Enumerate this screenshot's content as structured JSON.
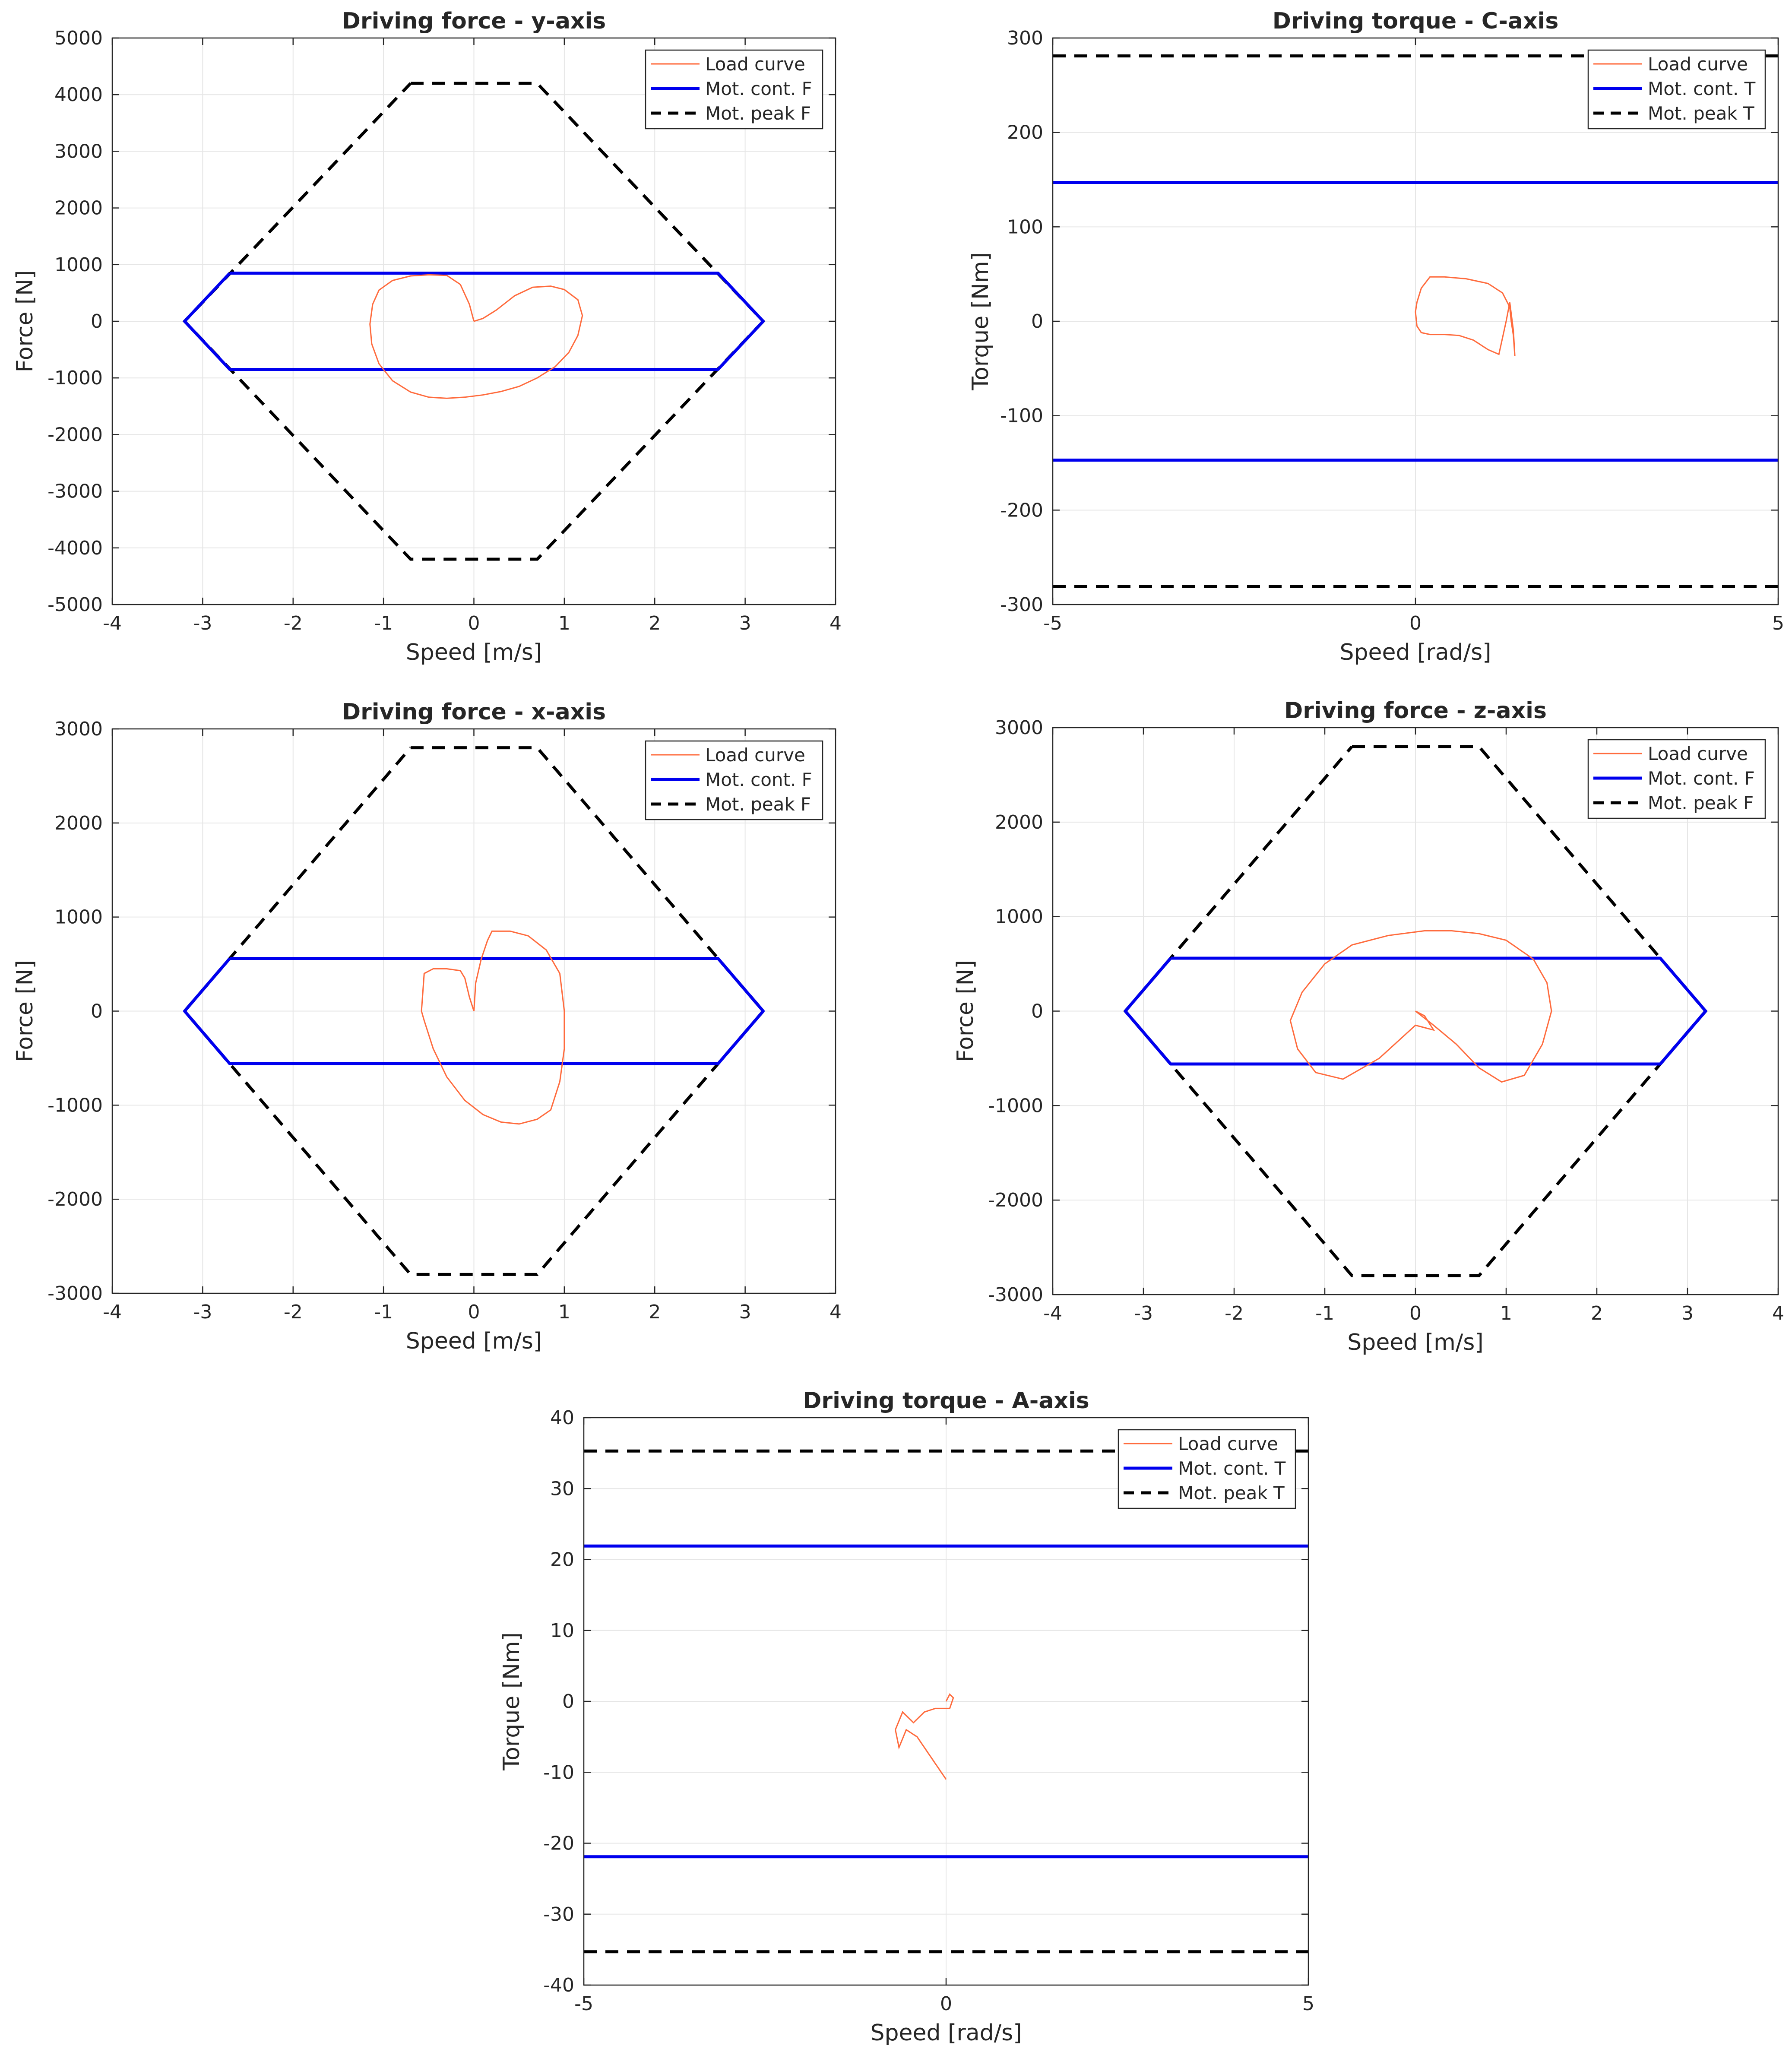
{
  "figure": {
    "colors": {
      "load_curve": "#ff6b3d",
      "mot_cont": "#0000ee",
      "mot_peak": "#000000",
      "grid": "#e6e6e6",
      "axis": "#262626",
      "legend_border": "#262626"
    }
  },
  "chart_data": [
    {
      "id": "y-axis",
      "type": "line",
      "title": "Driving force - y-axis",
      "xlabel": "Speed [m/s]",
      "ylabel": "Force [N]",
      "xlim": [
        -4,
        4
      ],
      "ylim": [
        -5000,
        5000
      ],
      "xticks": [
        -4,
        -3,
        -2,
        -1,
        0,
        1,
        2,
        3,
        4
      ],
      "yticks": [
        -5000,
        -4000,
        -3000,
        -2000,
        -1000,
        0,
        1000,
        2000,
        3000,
        4000,
        5000
      ],
      "grid": true,
      "legend_position": "top-right",
      "series": [
        {
          "name": "Load curve",
          "style": "thin-solid",
          "x": [
            0,
            0.1,
            0.25,
            0.45,
            0.65,
            0.85,
            1.0,
            1.15,
            1.2,
            1.15,
            1.05,
            0.9,
            0.7,
            0.5,
            0.3,
            0.1,
            -0.1,
            -0.3,
            -0.5,
            -0.7,
            -0.9,
            -1.05,
            -1.13,
            -1.15,
            -1.12,
            -1.05,
            -0.9,
            -0.7,
            -0.5,
            -0.3,
            -0.15,
            -0.05,
            0
          ],
          "y": [
            0,
            50,
            200,
            450,
            600,
            620,
            560,
            380,
            100,
            -250,
            -550,
            -800,
            -1000,
            -1150,
            -1240,
            -1300,
            -1340,
            -1360,
            -1340,
            -1250,
            -1050,
            -750,
            -400,
            -50,
            300,
            550,
            720,
            800,
            820,
            810,
            650,
            300,
            0
          ]
        },
        {
          "name": "Mot. cont. F",
          "style": "solid",
          "x": [
            -2.7,
            2.7,
            3.2,
            2.7,
            -2.7,
            -3.2,
            -2.7
          ],
          "y": [
            850,
            850,
            0,
            -850,
            -850,
            0,
            850
          ]
        },
        {
          "name": "Mot. peak F",
          "style": "dashed",
          "x": [
            -0.7,
            0.7,
            3.2,
            0.7,
            -0.7,
            -3.2,
            -0.7
          ],
          "y": [
            4200,
            4200,
            0,
            -4200,
            -4200,
            0,
            4200
          ]
        }
      ]
    },
    {
      "id": "c-axis",
      "type": "line",
      "title": "Driving torque - C-axis",
      "xlabel": "Speed [rad/s]",
      "ylabel": "Torque [Nm]",
      "xlim": [
        -5,
        5
      ],
      "ylim": [
        -300,
        300
      ],
      "xticks": [
        -5,
        0,
        5
      ],
      "yticks": [
        -300,
        -200,
        -100,
        0,
        100,
        200,
        300
      ],
      "grid": true,
      "legend_position": "top-right",
      "series": [
        {
          "name": "Load curve",
          "style": "thin-solid",
          "x": [
            0,
            0.02,
            0.08,
            0.2,
            0.4,
            0.7,
            1.0,
            1.2,
            1.3,
            1.32,
            1.35,
            1.37,
            1.35,
            1.3,
            1.25,
            1.15,
            1.0,
            0.8,
            0.6,
            0.4,
            0.2,
            0.08,
            0.02,
            0
          ],
          "y": [
            10,
            20,
            35,
            47,
            47,
            45,
            40,
            30,
            15,
            0,
            -15,
            -37,
            -10,
            20,
            0,
            -35,
            -30,
            -20,
            -15,
            -14,
            -14,
            -12,
            -5,
            10
          ]
        },
        {
          "name": "Mot. cont. T",
          "style": "solid",
          "x": [
            -5,
            5
          ],
          "y": [
            147,
            147
          ],
          "x2": [
            -5,
            5
          ],
          "y2": [
            -147,
            -147
          ]
        },
        {
          "name": "Mot. peak T",
          "style": "dashed",
          "x": [
            -5,
            5
          ],
          "y": [
            281,
            281
          ],
          "x2": [
            -5,
            5
          ],
          "y2": [
            -281,
            -281
          ]
        }
      ]
    },
    {
      "id": "x-axis",
      "type": "line",
      "title": "Driving force - x-axis",
      "xlabel": "Speed [m/s]",
      "ylabel": "Force [N]",
      "xlim": [
        -4,
        4
      ],
      "ylim": [
        -3000,
        3000
      ],
      "xticks": [
        -4,
        -3,
        -2,
        -1,
        0,
        1,
        2,
        3,
        4
      ],
      "yticks": [
        -3000,
        -2000,
        -1000,
        0,
        1000,
        2000,
        3000
      ],
      "grid": true,
      "legend_position": "top-right",
      "series": [
        {
          "name": "Load curve",
          "style": "thin-solid",
          "x": [
            0,
            0.02,
            0.08,
            0.15,
            0.2,
            0.4,
            0.6,
            0.8,
            0.95,
            1.0,
            1.0,
            0.95,
            0.85,
            0.7,
            0.5,
            0.3,
            0.1,
            -0.1,
            -0.3,
            -0.45,
            -0.55,
            -0.58,
            -0.55,
            -0.45,
            -0.3,
            -0.15,
            -0.1,
            -0.05,
            0
          ],
          "y": [
            0,
            300,
            550,
            750,
            850,
            850,
            800,
            650,
            400,
            0,
            -400,
            -750,
            -1050,
            -1150,
            -1200,
            -1180,
            -1100,
            -950,
            -700,
            -400,
            -100,
            0,
            400,
            450,
            450,
            430,
            350,
            150,
            0
          ]
        },
        {
          "name": "Mot. cont. F",
          "style": "solid",
          "x": [
            -2.7,
            2.7,
            3.2,
            2.7,
            -2.7,
            -3.2,
            -2.7
          ],
          "y": [
            560,
            560,
            0,
            -560,
            -560,
            0,
            560
          ]
        },
        {
          "name": "Mot. peak F",
          "style": "dashed",
          "x": [
            -0.7,
            0.7,
            3.2,
            0.7,
            -0.7,
            -3.2,
            -0.7
          ],
          "y": [
            2800,
            2800,
            0,
            -2800,
            -2800,
            0,
            2800
          ]
        }
      ]
    },
    {
      "id": "z-axis",
      "type": "line",
      "title": "Driving force - z-axis",
      "xlabel": "Speed [m/s]",
      "ylabel": "Force [N]",
      "xlim": [
        -4,
        4
      ],
      "ylim": [
        -3000,
        3000
      ],
      "xticks": [
        -4,
        -3,
        -2,
        -1,
        0,
        1,
        2,
        3,
        4
      ],
      "yticks": [
        -3000,
        -2000,
        -1000,
        0,
        1000,
        2000,
        3000
      ],
      "grid": true,
      "legend_position": "top-right",
      "series": [
        {
          "name": "Load curve",
          "style": "thin-solid",
          "x": [
            0,
            0.2,
            0.45,
            0.7,
            0.95,
            1.2,
            1.4,
            1.5,
            1.45,
            1.3,
            1.0,
            0.7,
            0.4,
            0.1,
            -0.3,
            -0.7,
            -1.0,
            -1.25,
            -1.38,
            -1.3,
            -1.1,
            -0.8,
            -0.4,
            0,
            0.2,
            0.1,
            0
          ],
          "y": [
            0,
            -150,
            -350,
            -600,
            -750,
            -680,
            -350,
            0,
            300,
            550,
            750,
            820,
            850,
            850,
            800,
            700,
            500,
            200,
            -100,
            -400,
            -650,
            -720,
            -500,
            -150,
            -200,
            -50,
            0
          ]
        },
        {
          "name": "Mot. cont. F",
          "style": "solid",
          "x": [
            -2.7,
            2.7,
            3.2,
            2.7,
            -2.7,
            -3.2,
            -2.7
          ],
          "y": [
            560,
            560,
            0,
            -560,
            -560,
            0,
            560
          ]
        },
        {
          "name": "Mot. peak F",
          "style": "dashed",
          "x": [
            -0.7,
            0.7,
            3.2,
            0.7,
            -0.7,
            -3.2,
            -0.7
          ],
          "y": [
            2800,
            2800,
            0,
            -2800,
            -2800,
            0,
            2800
          ]
        }
      ]
    },
    {
      "id": "a-axis",
      "type": "line",
      "title": "Driving torque - A-axis",
      "xlabel": "Speed [rad/s]",
      "ylabel": "Torque [Nm]",
      "xlim": [
        -5,
        5
      ],
      "ylim": [
        -40,
        40
      ],
      "xticks": [
        -5,
        0,
        5
      ],
      "yticks": [
        -40,
        -30,
        -20,
        -10,
        0,
        10,
        20,
        30,
        40
      ],
      "grid": true,
      "legend_position": "top-right",
      "series": [
        {
          "name": "Load curve",
          "style": "thin-solid",
          "x": [
            0,
            0.05,
            0.1,
            0.05,
            0,
            -0.15,
            -0.3,
            -0.45,
            -0.6,
            -0.7,
            -0.65,
            -0.55,
            -0.4,
            -0.2,
            0
          ],
          "y": [
            0,
            1,
            0.5,
            -1,
            -1,
            -1,
            -1.5,
            -3,
            -1.5,
            -4,
            -6.5,
            -4,
            -5,
            -8,
            -11
          ]
        },
        {
          "name": "Mot. cont. T",
          "style": "solid",
          "x": [
            -5,
            5
          ],
          "y": [
            21.9,
            21.9
          ],
          "x2": [
            -5,
            5
          ],
          "y2": [
            -21.9,
            -21.9
          ]
        },
        {
          "name": "Mot. peak T",
          "style": "dashed",
          "x": [
            -5,
            5
          ],
          "y": [
            35.3,
            35.3
          ],
          "x2": [
            -5,
            5
          ],
          "y2": [
            -35.3,
            -35.3
          ]
        }
      ]
    }
  ]
}
